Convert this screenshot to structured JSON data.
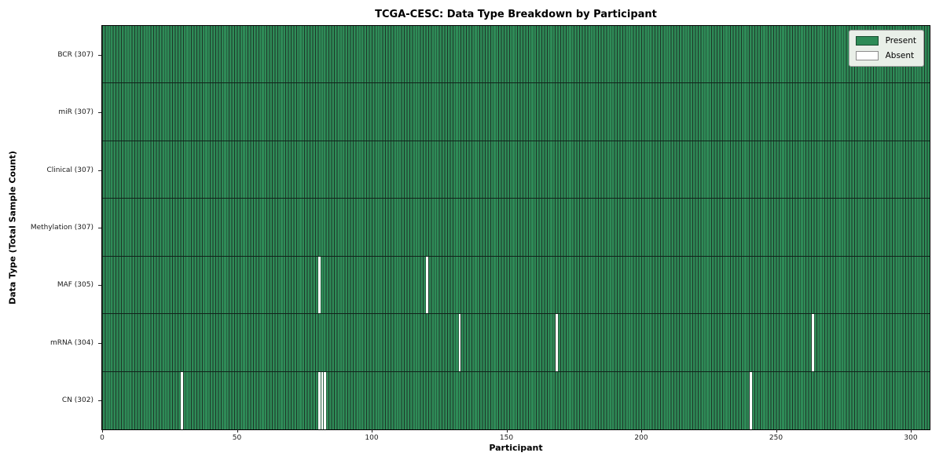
{
  "title": "TCGA-CESC: Data Type Breakdown by Participant",
  "chart_data": {
    "type": "heatmap",
    "title": "TCGA-CESC: Data Type Breakdown by Participant",
    "xlabel": "Participant",
    "ylabel": "Data Type (Total Sample Count)",
    "n_participants": 307,
    "x_ticks": [
      0,
      50,
      100,
      150,
      200,
      250,
      300
    ],
    "rows": [
      {
        "label": "BCR (307)",
        "data_type": "BCR",
        "total": 307,
        "absent_participants": []
      },
      {
        "label": "miR (307)",
        "data_type": "miR",
        "total": 307,
        "absent_participants": []
      },
      {
        "label": "Clinical (307)",
        "data_type": "Clinical",
        "total": 307,
        "absent_participants": []
      },
      {
        "label": "Methylation (307)",
        "data_type": "Methylation",
        "total": 307,
        "absent_participants": []
      },
      {
        "label": "MAF (305)",
        "data_type": "MAF",
        "total": 305,
        "absent_participants": [
          80,
          120
        ]
      },
      {
        "label": "mRNA (304)",
        "data_type": "mRNA",
        "total": 304,
        "absent_participants": [
          132,
          168,
          263
        ]
      },
      {
        "label": "CN (302)",
        "data_type": "CN",
        "total": 302,
        "absent_participants": [
          29,
          80,
          81,
          82,
          240
        ]
      }
    ],
    "legend": [
      {
        "label": "Present",
        "color": "#2e8b57"
      },
      {
        "label": "Absent",
        "color": "#ffffff"
      }
    ],
    "legend_position": "upper right",
    "grid": false,
    "colors": {
      "present": "#2e8b57",
      "absent": "#ffffff",
      "cell_edge": "#1e3528",
      "row_divider": "#10231a",
      "spine": "#000000"
    }
  }
}
